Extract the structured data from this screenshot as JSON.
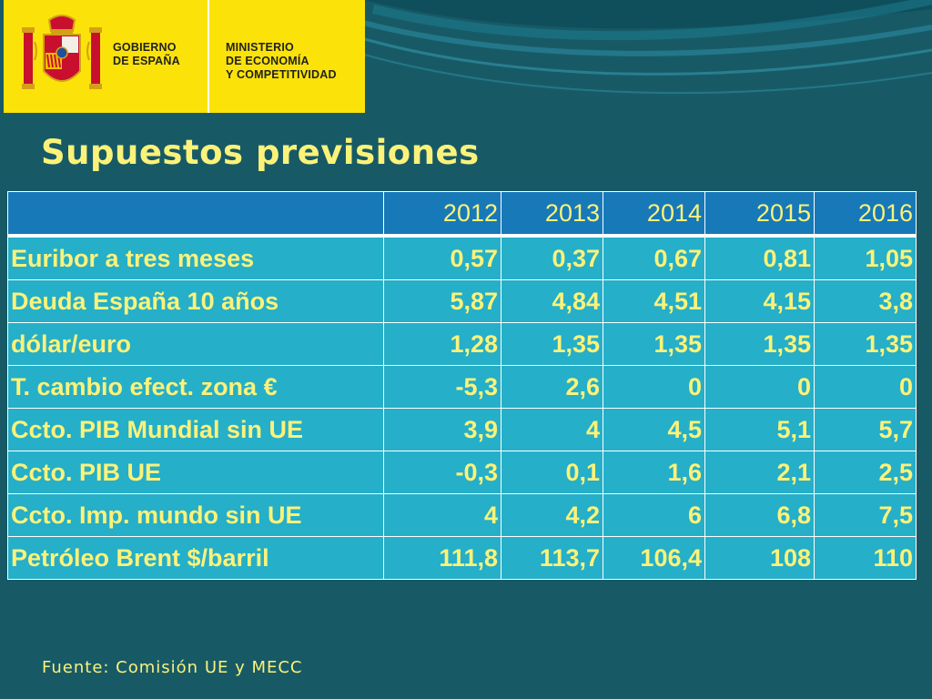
{
  "logo": {
    "gov_lines": [
      "GOBIERNO",
      "DE ESPAÑA"
    ],
    "ministry_lines": [
      "MINISTERIO",
      "DE ECONOMÍA",
      "Y COMPETITIVIDAD"
    ]
  },
  "title": "Supuestos previsiones",
  "table": {
    "header": [
      "",
      "2012",
      "2013",
      "2014",
      "2015",
      "2016"
    ],
    "rows": [
      [
        "Euribor a tres meses",
        "0,57",
        "0,37",
        "0,67",
        "0,81",
        "1,05"
      ],
      [
        "Deuda España 10 años",
        "5,87",
        "4,84",
        "4,51",
        "4,15",
        "3,8"
      ],
      [
        "dólar/euro",
        "1,28",
        "1,35",
        "1,35",
        "1,35",
        "1,35"
      ],
      [
        "T. cambio efect.  zona €",
        "-5,3",
        "2,6",
        "0",
        "0",
        "0"
      ],
      [
        "Ccto. PIB Mundial sin UE",
        "3,9",
        "4",
        "4,5",
        "5,1",
        "5,7"
      ],
      [
        "Ccto. PIB UE",
        "-0,3",
        "0,1",
        "1,6",
        "2,1",
        "2,5"
      ],
      [
        "Ccto. Imp. mundo sin UE",
        "4",
        "4,2",
        "6",
        "6,8",
        "7,5"
      ],
      [
        "Petróleo Brent $/barril",
        "111,8",
        "113,7",
        "106,4",
        "108",
        "110"
      ]
    ]
  },
  "source": "Fuente: Comisión UE y MECC",
  "colors": {
    "background": "#175a66",
    "logo_background": "#fbe30a",
    "text_accent": "#fbf27a",
    "table_header": "#1779b8",
    "table_body": "#25afc8"
  }
}
